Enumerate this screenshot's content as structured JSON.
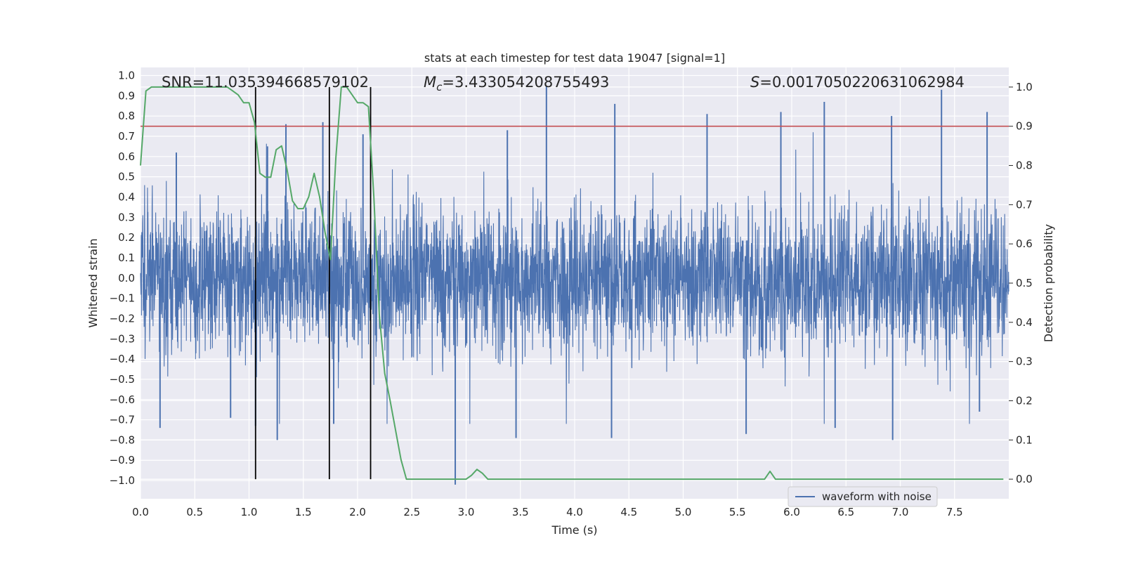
{
  "chart_data": {
    "type": "line",
    "title": "stats at each timestep for test data 19047 [signal=1]",
    "xlabel": "Time (s)",
    "ylabel": "Whitened strain",
    "y2label": "Detection probability",
    "xlim": [
      0.0,
      8.0
    ],
    "ylim": [
      -1.09,
      1.04
    ],
    "y2lim": [
      -0.05,
      1.05
    ],
    "x_ticks": [
      "0.0",
      "0.5",
      "1.0",
      "1.5",
      "2.0",
      "2.5",
      "3.0",
      "3.5",
      "4.0",
      "4.5",
      "5.0",
      "5.5",
      "6.0",
      "6.5",
      "7.0",
      "7.5"
    ],
    "y_ticks": [
      "1.0",
      "0.9",
      "0.8",
      "0.7",
      "0.6",
      "0.5",
      "0.4",
      "0.3",
      "0.2",
      "0.1",
      "0.0",
      "-0.1",
      "-0.2",
      "-0.3",
      "-0.4",
      "-0.5",
      "-0.6",
      "-0.7",
      "-0.8",
      "-0.9",
      "-1.0"
    ],
    "y2_ticks": [
      "1.0",
      "0.9",
      "0.8",
      "0.7",
      "0.6",
      "0.5",
      "0.4",
      "0.3",
      "0.2",
      "0.1",
      "0.0"
    ],
    "annotations": {
      "snr": "SNR=11.035394668579102",
      "mc_symbol": "M",
      "mc_sub": "c",
      "mc_value": "=3.433054208755493",
      "s_symbol": "S",
      "s_value": "=0.0017050220631062984"
    },
    "threshold": {
      "y2": 0.9,
      "color": "#c44e52"
    },
    "vertical_lines": [
      1.06,
      1.74,
      2.12
    ],
    "legend": {
      "label": "waveform with noise",
      "location": "lower-right"
    },
    "series": [
      {
        "name": "waveform with noise",
        "color": "#4c72b0",
        "axis": "left",
        "note": "dense noisy strain, envelope approx +/-0.35 with spikes",
        "spikes": [
          {
            "t": 0.18,
            "v": -0.74
          },
          {
            "t": 0.33,
            "v": 0.62
          },
          {
            "t": 0.83,
            "v": -0.69
          },
          {
            "t": 1.06,
            "v": -0.73
          },
          {
            "t": 1.17,
            "v": 0.65
          },
          {
            "t": 1.26,
            "v": -0.8
          },
          {
            "t": 1.34,
            "v": 0.76
          },
          {
            "t": 1.68,
            "v": 0.77
          },
          {
            "t": 1.78,
            "v": -0.72
          },
          {
            "t": 2.05,
            "v": 0.71
          },
          {
            "t": 2.9,
            "v": -1.02
          },
          {
            "t": 3.38,
            "v": 0.73
          },
          {
            "t": 3.46,
            "v": -0.79
          },
          {
            "t": 3.74,
            "v": 0.95
          },
          {
            "t": 4.37,
            "v": 0.86
          },
          {
            "t": 4.34,
            "v": -0.79
          },
          {
            "t": 5.22,
            "v": 0.81
          },
          {
            "t": 5.58,
            "v": -0.77
          },
          {
            "t": 5.9,
            "v": 0.82
          },
          {
            "t": 6.3,
            "v": 0.87
          },
          {
            "t": 6.4,
            "v": -0.74
          },
          {
            "t": 6.92,
            "v": 0.8
          },
          {
            "t": 6.93,
            "v": -0.8
          },
          {
            "t": 7.38,
            "v": 0.93
          },
          {
            "t": 7.8,
            "v": 0.82
          },
          {
            "t": 7.73,
            "v": -0.66
          }
        ]
      },
      {
        "name": "Detection probability",
        "color": "#55a868",
        "axis": "right",
        "x": [
          0.0,
          0.05,
          0.1,
          0.2,
          0.3,
          0.4,
          0.5,
          0.6,
          0.7,
          0.75,
          0.8,
          0.85,
          0.9,
          0.95,
          1.0,
          1.05,
          1.1,
          1.15,
          1.2,
          1.25,
          1.3,
          1.35,
          1.4,
          1.45,
          1.5,
          1.55,
          1.6,
          1.65,
          1.7,
          1.75,
          1.8,
          1.85,
          1.9,
          1.95,
          2.0,
          2.05,
          2.1,
          2.15,
          2.2,
          2.25,
          2.3,
          2.4,
          2.45,
          2.5,
          2.6,
          2.7,
          2.8,
          2.9,
          3.0,
          3.05,
          3.1,
          3.15,
          3.2,
          3.25,
          3.3,
          3.4,
          3.5,
          3.6,
          3.7,
          3.8,
          3.9,
          4.0,
          4.2,
          4.4,
          4.6,
          4.8,
          5.0,
          5.2,
          5.4,
          5.6,
          5.7,
          5.75,
          5.8,
          5.85,
          5.9,
          6.0,
          6.2,
          6.4,
          6.6,
          6.8,
          7.0,
          7.2,
          7.4,
          7.6,
          7.8,
          7.95
        ],
        "y": [
          0.8,
          0.99,
          1.0,
          1.0,
          1.0,
          1.0,
          1.0,
          1.0,
          1.0,
          1.0,
          1.0,
          0.99,
          0.98,
          0.96,
          0.96,
          0.91,
          0.78,
          0.77,
          0.77,
          0.84,
          0.85,
          0.79,
          0.71,
          0.69,
          0.69,
          0.72,
          0.78,
          0.72,
          0.63,
          0.56,
          0.82,
          1.0,
          1.0,
          0.98,
          0.96,
          0.96,
          0.95,
          0.72,
          0.42,
          0.27,
          0.2,
          0.05,
          0.0,
          0.0,
          0.0,
          0.0,
          0.0,
          0.0,
          0.0,
          0.01,
          0.025,
          0.015,
          0.0,
          0.0,
          0.0,
          0.0,
          0.0,
          0.0,
          0.0,
          0.0,
          0.0,
          0.0,
          0.0,
          0.0,
          0.0,
          0.0,
          0.0,
          0.0,
          0.0,
          0.0,
          0.0,
          0.0,
          0.02,
          0.0,
          0.0,
          0.0,
          0.0,
          0.0,
          0.0,
          0.0,
          0.0,
          0.0,
          0.0,
          0.0,
          0.0,
          0.0
        ]
      }
    ]
  }
}
